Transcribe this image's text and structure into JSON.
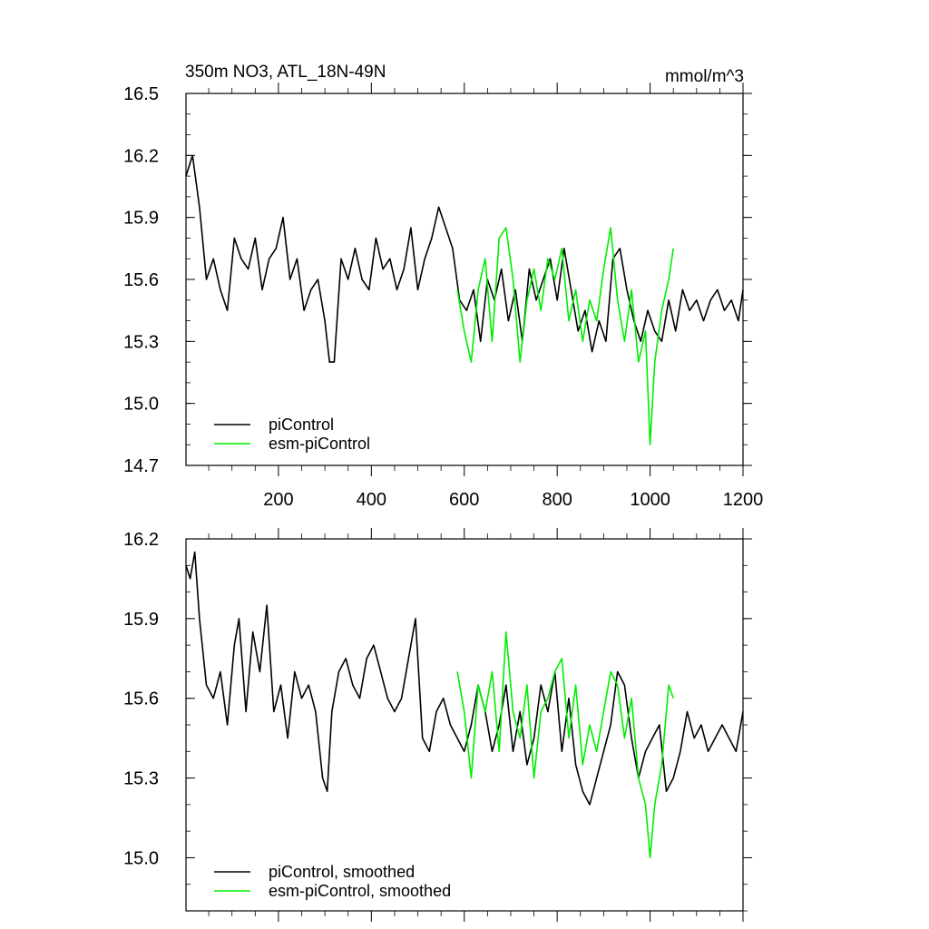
{
  "chart_data": [
    {
      "type": "line",
      "title": "350m NO3, ATL_18N-49N",
      "units": "mmol/m^3",
      "xlim": [
        1,
        1200
      ],
      "ylim": [
        14.7,
        16.5
      ],
      "x_ticks": [
        200,
        400,
        600,
        800,
        1000,
        1200
      ],
      "x_tick_labels": [
        "200",
        "400",
        "600",
        "800",
        "1000",
        "1200"
      ],
      "y_ticks": [
        14.7,
        15.0,
        15.3,
        15.6,
        15.9,
        16.2,
        16.5
      ],
      "y_tick_labels": [
        "14.7",
        "15.0",
        "15.3",
        "15.6",
        "15.9",
        "16.2",
        "16.5"
      ],
      "grid": false,
      "legend_position": "bottom-left",
      "legend": [
        "piControl",
        "esm-piControl"
      ],
      "series": [
        {
          "name": "piControl",
          "color": "#000000",
          "x": [
            1,
            15,
            30,
            45,
            60,
            75,
            90,
            105,
            120,
            135,
            150,
            165,
            180,
            195,
            210,
            225,
            240,
            255,
            270,
            285,
            300,
            310,
            320,
            335,
            350,
            365,
            380,
            395,
            410,
            425,
            440,
            455,
            470,
            485,
            500,
            515,
            530,
            545,
            560,
            575,
            590,
            605,
            620,
            635,
            650,
            665,
            680,
            695,
            710,
            725,
            740,
            755,
            770,
            785,
            800,
            815,
            830,
            845,
            860,
            875,
            890,
            905,
            920,
            935,
            950,
            965,
            980,
            995,
            1010,
            1025,
            1040,
            1055,
            1070,
            1085,
            1100,
            1115,
            1130,
            1145,
            1160,
            1175,
            1190,
            1200
          ],
          "values": [
            16.1,
            16.2,
            15.95,
            15.6,
            15.7,
            15.55,
            15.45,
            15.8,
            15.7,
            15.65,
            15.8,
            15.55,
            15.7,
            15.75,
            15.9,
            15.6,
            15.7,
            15.45,
            15.55,
            15.6,
            15.4,
            15.2,
            15.2,
            15.7,
            15.6,
            15.75,
            15.6,
            15.55,
            15.8,
            15.65,
            15.7,
            15.55,
            15.65,
            15.85,
            15.55,
            15.7,
            15.8,
            15.95,
            15.85,
            15.75,
            15.5,
            15.45,
            15.55,
            15.3,
            15.6,
            15.5,
            15.65,
            15.4,
            15.55,
            15.3,
            15.65,
            15.5,
            15.6,
            15.7,
            15.5,
            15.75,
            15.55,
            15.35,
            15.45,
            15.25,
            15.4,
            15.3,
            15.7,
            15.75,
            15.55,
            15.4,
            15.3,
            15.45,
            15.35,
            15.3,
            15.5,
            15.35,
            15.55,
            15.45,
            15.5,
            15.4,
            15.5,
            15.55,
            15.45,
            15.5,
            15.4,
            15.55
          ]
        },
        {
          "name": "esm-piControl",
          "color": "#00ee00",
          "x": [
            585,
            600,
            615,
            630,
            645,
            660,
            675,
            690,
            705,
            720,
            735,
            750,
            765,
            780,
            795,
            810,
            825,
            840,
            855,
            870,
            885,
            900,
            915,
            930,
            945,
            960,
            975,
            990,
            1000,
            1010,
            1025,
            1040,
            1050
          ],
          "values": [
            15.55,
            15.35,
            15.2,
            15.55,
            15.7,
            15.3,
            15.8,
            15.85,
            15.6,
            15.2,
            15.5,
            15.65,
            15.45,
            15.7,
            15.6,
            15.75,
            15.4,
            15.55,
            15.3,
            15.5,
            15.4,
            15.65,
            15.85,
            15.5,
            15.3,
            15.55,
            15.2,
            15.35,
            14.8,
            15.2,
            15.45,
            15.6,
            15.75
          ]
        }
      ]
    },
    {
      "type": "line",
      "title": "",
      "xlim": [
        1,
        1200
      ],
      "ylim": [
        14.8,
        16.2
      ],
      "y_ticks": [
        15.0,
        15.3,
        15.6,
        15.9,
        16.2
      ],
      "y_tick_labels": [
        "15.0",
        "15.3",
        "15.6",
        "15.9",
        "16.2"
      ],
      "grid": false,
      "legend_position": "bottom-left",
      "legend": [
        "piControl, smoothed",
        "esm-piControl, smoothed"
      ],
      "series": [
        {
          "name": "piControl, smoothed",
          "color": "#000000",
          "x": [
            1,
            10,
            20,
            30,
            45,
            60,
            75,
            90,
            105,
            115,
            130,
            145,
            160,
            175,
            190,
            205,
            220,
            235,
            250,
            265,
            280,
            295,
            305,
            315,
            330,
            345,
            360,
            375,
            390,
            405,
            420,
            435,
            450,
            465,
            480,
            495,
            510,
            525,
            540,
            555,
            570,
            585,
            600,
            615,
            630,
            645,
            660,
            675,
            690,
            705,
            720,
            735,
            750,
            765,
            780,
            795,
            810,
            825,
            840,
            855,
            870,
            885,
            900,
            915,
            930,
            945,
            960,
            975,
            990,
            1005,
            1020,
            1035,
            1050,
            1065,
            1080,
            1095,
            1110,
            1125,
            1140,
            1155,
            1170,
            1185,
            1200
          ],
          "values": [
            16.1,
            16.05,
            16.15,
            15.9,
            15.65,
            15.6,
            15.7,
            15.5,
            15.8,
            15.9,
            15.55,
            15.85,
            15.7,
            15.95,
            15.55,
            15.65,
            15.45,
            15.7,
            15.6,
            15.65,
            15.55,
            15.3,
            15.25,
            15.55,
            15.7,
            15.75,
            15.65,
            15.6,
            15.75,
            15.8,
            15.7,
            15.6,
            15.55,
            15.6,
            15.75,
            15.9,
            15.45,
            15.4,
            15.55,
            15.6,
            15.5,
            15.45,
            15.4,
            15.5,
            15.65,
            15.55,
            15.4,
            15.5,
            15.65,
            15.4,
            15.55,
            15.35,
            15.45,
            15.65,
            15.55,
            15.7,
            15.4,
            15.6,
            15.35,
            15.25,
            15.2,
            15.3,
            15.4,
            15.5,
            15.7,
            15.65,
            15.45,
            15.3,
            15.4,
            15.45,
            15.5,
            15.25,
            15.3,
            15.4,
            15.55,
            15.45,
            15.5,
            15.4,
            15.45,
            15.5,
            15.45,
            15.4,
            15.55
          ]
        },
        {
          "name": "esm-piControl, smoothed",
          "color": "#00ee00",
          "x": [
            585,
            600,
            615,
            630,
            645,
            660,
            675,
            690,
            705,
            720,
            735,
            750,
            765,
            780,
            795,
            810,
            825,
            840,
            855,
            870,
            885,
            900,
            915,
            930,
            945,
            960,
            975,
            990,
            1000,
            1010,
            1025,
            1040,
            1050
          ],
          "values": [
            15.7,
            15.55,
            15.3,
            15.65,
            15.55,
            15.7,
            15.4,
            15.85,
            15.55,
            15.45,
            15.65,
            15.3,
            15.55,
            15.6,
            15.7,
            15.75,
            15.45,
            15.65,
            15.35,
            15.5,
            15.4,
            15.55,
            15.7,
            15.65,
            15.45,
            15.6,
            15.3,
            15.2,
            15.0,
            15.2,
            15.35,
            15.65,
            15.6
          ]
        }
      ]
    }
  ]
}
